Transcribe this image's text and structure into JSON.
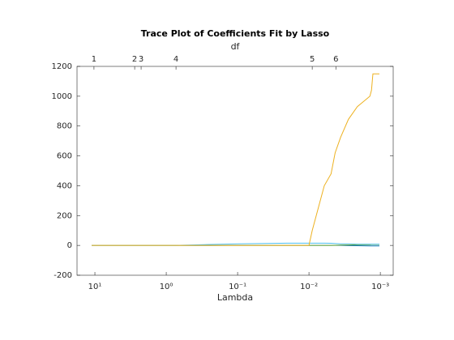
{
  "chart_data": {
    "type": "line",
    "title": "Trace Plot of Coefficients Fit by Lasso",
    "xlabel": "Lambda",
    "x2label": "df",
    "xscale": "log",
    "xlim": [
      17.8,
      0.00066
    ],
    "xticks": [
      {
        "value": 10,
        "label": "10¹"
      },
      {
        "value": 1,
        "label": "10⁰"
      },
      {
        "value": 0.1,
        "label": "10⁻¹"
      },
      {
        "value": 0.01,
        "label": "10⁻²"
      },
      {
        "value": 0.001,
        "label": "10⁻³"
      }
    ],
    "x2ticks": [
      {
        "value": 10.3,
        "label": "1"
      },
      {
        "value": 2.77,
        "label": "2"
      },
      {
        "value": 2.25,
        "label": "3"
      },
      {
        "value": 0.73,
        "label": "4"
      },
      {
        "value": 0.009,
        "label": "5"
      },
      {
        "value": 0.0042,
        "label": "6"
      }
    ],
    "ylim": [
      -200,
      1200
    ],
    "yticks": [
      -200,
      0,
      200,
      400,
      600,
      800,
      1000,
      1200
    ],
    "x": [
      11.1,
      2.25,
      0.73,
      0.3,
      0.1,
      0.05,
      0.02,
      0.01,
      0.009,
      0.0061,
      0.0049,
      0.0043,
      0.0036,
      0.0028,
      0.0021,
      0.0014,
      0.00133,
      0.00127,
      0.00103
    ],
    "series": [
      {
        "color": "#0072BD",
        "values": [
          0,
          0,
          0,
          0,
          0,
          0,
          0,
          0,
          0,
          0,
          0,
          0,
          0,
          -1,
          -2,
          -3,
          -3,
          -3,
          -3
        ]
      },
      {
        "color": "#77AC30",
        "values": [
          0,
          0,
          0,
          0,
          0,
          0,
          0,
          0,
          0,
          0,
          0,
          1,
          2,
          3,
          4,
          5,
          6,
          6,
          6
        ]
      },
      {
        "color": "#4DBEEE",
        "values": [
          0,
          0,
          0,
          5,
          10,
          12,
          15,
          15,
          15,
          15,
          14,
          12,
          10,
          10,
          8,
          8,
          8,
          8,
          8
        ]
      },
      {
        "color": "#EDB120",
        "values": [
          0,
          0,
          0,
          0,
          0,
          0,
          0,
          0,
          100,
          400,
          480,
          620,
          725,
          845,
          930,
          1000,
          1040,
          1150,
          1150
        ]
      }
    ]
  }
}
